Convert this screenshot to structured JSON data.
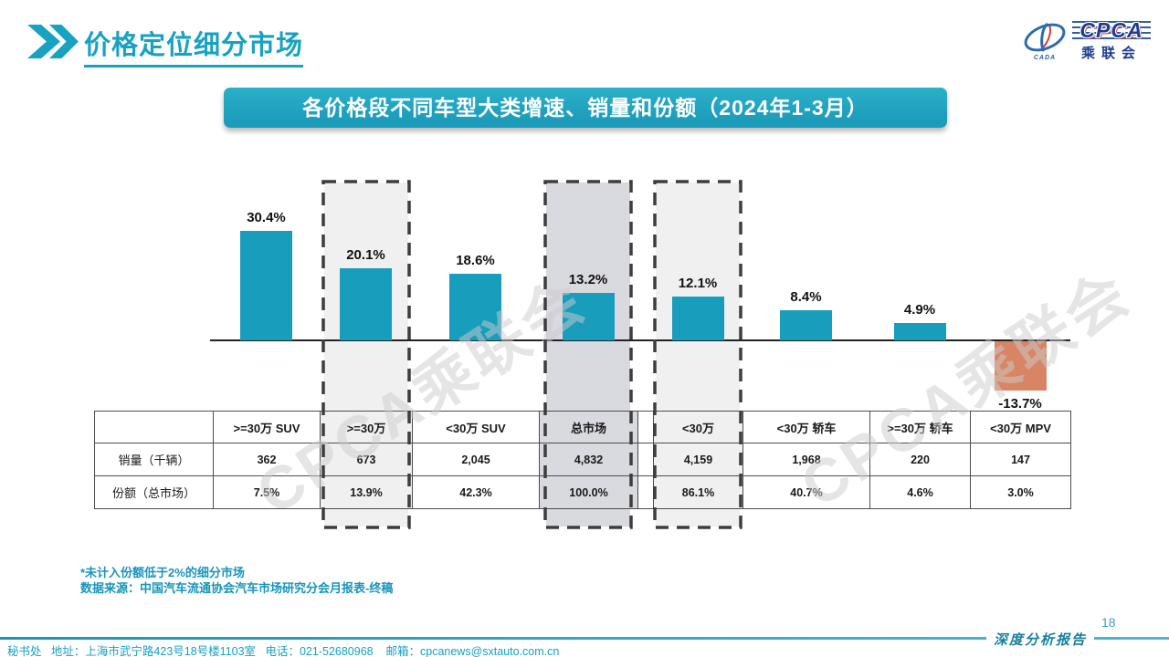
{
  "page": {
    "title": "价格定位细分市场",
    "page_number": "18",
    "report_badge": "深度分析报告",
    "footer_line": "秘书处   地址：上海市武宁路423号18号楼1103室   电话：021-52680968    邮箱：cpcanews@sxtauto.com.cn"
  },
  "logo": {
    "abbr": "CPCA",
    "cn": "乘联会",
    "assoc": "CADA"
  },
  "banner": {
    "title": "各价格段不同车型大类增速、销量和份额（2024年1-3月）"
  },
  "watermark": {
    "text": "CPCA乘联会"
  },
  "notes": {
    "line1": "*未计入份额低于2%的细分市场",
    "line2": "数据来源：中国汽车流通协会汽车市场研究分会月报表-终稿"
  },
  "chart_data": {
    "type": "bar",
    "title": "各价格段不同车型大类增速、销量和份额（2024年1-3月）",
    "categories": [
      ">=30万 SUV",
      ">=30万",
      "<30万 SUV",
      "总市场",
      "<30万",
      "<30万 轿车",
      ">=30万 轿车",
      "<30万 MPV"
    ],
    "series": [
      {
        "name": "增速",
        "unit": "%",
        "values": [
          30.4,
          20.1,
          18.6,
          13.2,
          12.1,
          8.4,
          4.9,
          -13.7
        ],
        "labels": [
          "30.4%",
          "20.1%",
          "18.6%",
          "13.2%",
          "12.1%",
          "8.4%",
          "4.9%",
          "-13.7%"
        ]
      },
      {
        "name": "销量（千辆）",
        "values": [
          362,
          673,
          2045,
          4832,
          4159,
          1968,
          220,
          147
        ]
      },
      {
        "name": "份额（总市场）",
        "unit": "%",
        "values": [
          7.5,
          13.9,
          42.3,
          100.0,
          86.1,
          40.7,
          4.6,
          3.0
        ]
      }
    ],
    "highlighted_categories": [
      ">=30万",
      "总市场",
      "<30万"
    ],
    "bar_color": "#189dbc",
    "negative_bar_color": "#d88566",
    "highlight_fill": "#f0f0f0",
    "highlight_fill_total": "#d9d9e0",
    "dash_color": "#3d3d3d",
    "ylim": [
      -20,
      35
    ],
    "grid": false,
    "legend": false,
    "value_labels": true
  },
  "table": {
    "header": [
      "",
      ">=30万 SUV",
      ">=30万",
      "<30万 SUV",
      "总市场",
      "",
      "<30万",
      "<30万 轿车",
      ">=30万 轿车",
      "<30万 MPV"
    ],
    "rows": [
      {
        "label": "销量（千辆）",
        "cells": [
          "362",
          "673",
          "2,045",
          "4,832",
          "",
          "4,159",
          "1,968",
          "220",
          "147"
        ]
      },
      {
        "label": "份额（总市场）",
        "cells": [
          "7.5%",
          "13.9%",
          "42.3%",
          "100.0%",
          "",
          "86.1%",
          "40.7%",
          "4.6%",
          "3.0%"
        ]
      }
    ]
  }
}
